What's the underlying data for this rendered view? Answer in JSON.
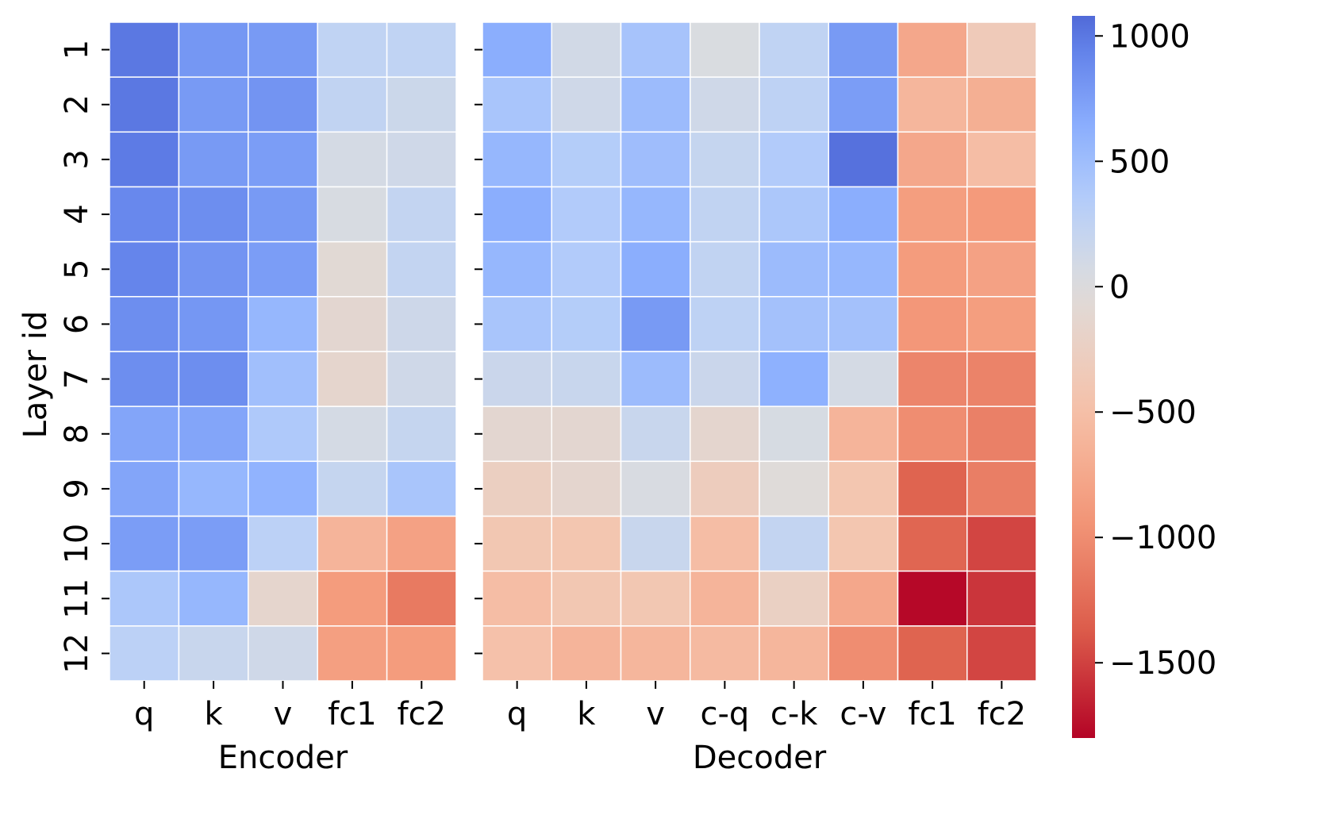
{
  "chart_data": {
    "type": "heatmap",
    "ylabel": "Layer id",
    "rows": [
      "1",
      "2",
      "3",
      "4",
      "5",
      "6",
      "7",
      "8",
      "9",
      "10",
      "11",
      "12"
    ],
    "panels": [
      {
        "name": "encoder",
        "xlabel": "Encoder",
        "columns": [
          "q",
          "k",
          "v",
          "fc1",
          "fc2"
        ],
        "values": [
          [
            1000,
            800,
            780,
            250,
            250
          ],
          [
            1000,
            780,
            820,
            240,
            150
          ],
          [
            980,
            780,
            760,
            80,
            120
          ],
          [
            900,
            860,
            780,
            50,
            220
          ],
          [
            920,
            820,
            760,
            -80,
            220
          ],
          [
            860,
            800,
            560,
            -120,
            140
          ],
          [
            860,
            860,
            480,
            -150,
            120
          ],
          [
            700,
            700,
            380,
            80,
            200
          ],
          [
            700,
            560,
            600,
            200,
            420
          ],
          [
            760,
            760,
            280,
            -620,
            -820
          ],
          [
            400,
            560,
            -150,
            -880,
            -1150
          ],
          [
            280,
            180,
            120,
            -850,
            -880
          ]
        ]
      },
      {
        "name": "decoder",
        "xlabel": "Decoder",
        "columns": [
          "q",
          "k",
          "v",
          "c-q",
          "c-k",
          "c-v",
          "fc1",
          "fc2"
        ],
        "values": [
          [
            640,
            100,
            440,
            30,
            250,
            780,
            -760,
            -340
          ],
          [
            420,
            120,
            520,
            120,
            260,
            760,
            -600,
            -680
          ],
          [
            560,
            340,
            500,
            200,
            360,
            1040,
            -760,
            -520
          ],
          [
            640,
            360,
            560,
            240,
            400,
            640,
            -860,
            -900
          ],
          [
            560,
            360,
            640,
            240,
            520,
            560,
            -880,
            -820
          ],
          [
            420,
            340,
            780,
            260,
            460,
            460,
            -920,
            -860
          ],
          [
            160,
            180,
            520,
            160,
            620,
            80,
            -1060,
            -1080
          ],
          [
            -120,
            -120,
            180,
            -140,
            60,
            -620,
            -1000,
            -1100
          ],
          [
            -260,
            -140,
            40,
            -300,
            -40,
            -420,
            -1320,
            -1120
          ],
          [
            -400,
            -420,
            180,
            -520,
            220,
            -420,
            -1300,
            -1480
          ],
          [
            -520,
            -400,
            -400,
            -620,
            -240,
            -760,
            -1780,
            -1560
          ],
          [
            -480,
            -620,
            -600,
            -560,
            -600,
            -1000,
            -1320,
            -1480
          ]
        ]
      }
    ],
    "colorbar": {
      "vmin": -1800,
      "vmax": 1080,
      "ticks": [
        1000,
        500,
        0,
        -500,
        -1000,
        -1500
      ],
      "tick_labels": [
        "1000",
        "500",
        "0",
        "−500",
        "−1000",
        "−1500"
      ],
      "colormap": "coolwarm"
    }
  }
}
